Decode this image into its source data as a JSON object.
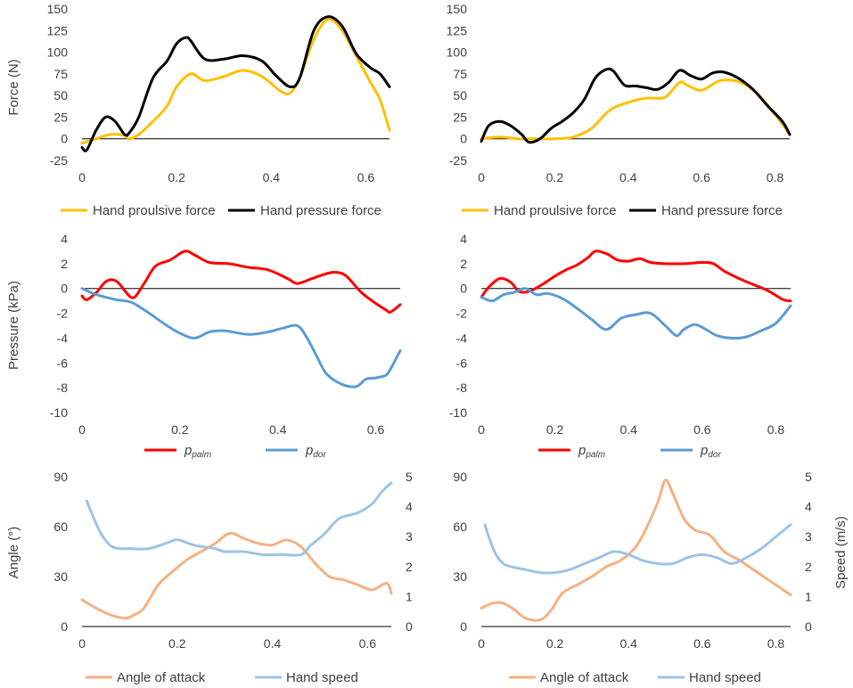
{
  "colors": {
    "propulsive": "#FFC000",
    "pressure_force": "#000000",
    "palm": "#FF0000",
    "dor": "#5B9BD5",
    "angle": "#F4B183",
    "speed": "#9DC3E6",
    "zero_line": "#000000",
    "tick_text": "#404040"
  },
  "chart_data": [
    {
      "id": "force-left",
      "type": "line",
      "ylabel": "Force (N)",
      "xlim": [
        0,
        0.65
      ],
      "ylim": [
        -25,
        150
      ],
      "xticks": [
        "0",
        "0.2",
        "0.4",
        "0.6"
      ],
      "xtick_values": [
        0,
        0.2,
        0.4,
        0.6
      ],
      "yticks": [
        "150",
        "125",
        "100",
        "75",
        "50",
        "25",
        "0",
        "-25"
      ],
      "ytick_values": [
        150,
        125,
        100,
        75,
        50,
        25,
        0,
        -25
      ],
      "legend_position": "bottom",
      "series": [
        {
          "name": "Hand proulsive force",
          "color_key": "propulsive",
          "x": [
            0,
            0.03,
            0.06,
            0.09,
            0.1,
            0.12,
            0.15,
            0.18,
            0.2,
            0.23,
            0.26,
            0.3,
            0.34,
            0.38,
            0.42,
            0.44,
            0.46,
            0.49,
            0.52,
            0.55,
            0.58,
            0.61,
            0.63,
            0.65
          ],
          "values": [
            -5,
            0,
            5,
            4,
            0,
            5,
            20,
            38,
            60,
            75,
            67,
            72,
            79,
            72,
            55,
            53,
            70,
            115,
            138,
            125,
            95,
            65,
            45,
            10
          ]
        },
        {
          "name": "Hand pressure force",
          "color_key": "pressure_force",
          "x": [
            0,
            0.01,
            0.03,
            0.05,
            0.07,
            0.09,
            0.1,
            0.12,
            0.15,
            0.18,
            0.2,
            0.22,
            0.23,
            0.26,
            0.3,
            0.34,
            0.38,
            0.41,
            0.44,
            0.46,
            0.49,
            0.52,
            0.55,
            0.58,
            0.61,
            0.63,
            0.65
          ],
          "values": [
            -10,
            -13,
            10,
            25,
            20,
            5,
            7,
            25,
            70,
            90,
            110,
            117,
            113,
            92,
            92,
            96,
            90,
            73,
            60,
            70,
            125,
            141,
            130,
            98,
            82,
            75,
            60
          ]
        }
      ]
    },
    {
      "id": "force-right",
      "type": "line",
      "ylabel": "",
      "xlim": [
        0,
        0.84
      ],
      "ylim": [
        -25,
        150
      ],
      "xticks": [
        "0",
        "0.2",
        "0.4",
        "0.6",
        "0.8"
      ],
      "xtick_values": [
        0,
        0.2,
        0.4,
        0.6,
        0.8
      ],
      "yticks": [
        "150",
        "125",
        "100",
        "75",
        "50",
        "25",
        "0",
        "-25"
      ],
      "ytick_values": [
        150,
        125,
        100,
        75,
        50,
        25,
        0,
        -25
      ],
      "legend_position": "bottom",
      "series": [
        {
          "name": "Hand proulsive force",
          "color_key": "propulsive",
          "x": [
            0,
            0.05,
            0.1,
            0.15,
            0.2,
            0.25,
            0.3,
            0.35,
            0.4,
            0.45,
            0.5,
            0.54,
            0.56,
            0.6,
            0.65,
            0.7,
            0.75,
            0.8,
            0.84
          ],
          "values": [
            0,
            2,
            0,
            0,
            0,
            2,
            12,
            33,
            42,
            47,
            48,
            65,
            62,
            56,
            67,
            66,
            53,
            28,
            5
          ]
        },
        {
          "name": "Hand pressure force",
          "color_key": "pressure_force",
          "x": [
            0,
            0.02,
            0.05,
            0.08,
            0.11,
            0.13,
            0.16,
            0.19,
            0.22,
            0.25,
            0.28,
            0.31,
            0.34,
            0.36,
            0.39,
            0.42,
            0.45,
            0.48,
            0.51,
            0.54,
            0.57,
            0.6,
            0.63,
            0.66,
            0.7,
            0.74,
            0.78,
            0.82,
            0.84
          ],
          "values": [
            -3,
            15,
            20,
            15,
            5,
            -4,
            0,
            12,
            20,
            30,
            45,
            70,
            80,
            78,
            62,
            61,
            59,
            57,
            65,
            79,
            73,
            69,
            76,
            77,
            70,
            57,
            38,
            20,
            5
          ]
        }
      ]
    },
    {
      "id": "pressure-left",
      "type": "line",
      "ylabel": "Pressure (kPa)",
      "xlim": [
        0,
        0.65
      ],
      "ylim": [
        -10,
        4
      ],
      "xticks": [
        "0",
        "0.2",
        "0.4",
        "0.6"
      ],
      "xtick_values": [
        0,
        0.2,
        0.4,
        0.6
      ],
      "yticks": [
        "4",
        "2",
        "0",
        "-2",
        "-4",
        "-6",
        "-8",
        "-10"
      ],
      "ytick_values": [
        4,
        2,
        0,
        -2,
        -4,
        -6,
        -8,
        -10
      ],
      "legend_position": "bottom",
      "series": [
        {
          "name": "p",
          "sub": "palm",
          "color_key": "palm",
          "x": [
            0,
            0.01,
            0.03,
            0.05,
            0.07,
            0.09,
            0.1,
            0.11,
            0.13,
            0.15,
            0.18,
            0.21,
            0.23,
            0.26,
            0.3,
            0.34,
            0.38,
            0.42,
            0.44,
            0.47,
            0.5,
            0.52,
            0.54,
            0.57,
            0.6,
            0.62,
            0.63,
            0.65
          ],
          "values": [
            -0.6,
            -0.9,
            -0.3,
            0.6,
            0.6,
            -0.3,
            -0.7,
            -0.6,
            0.6,
            1.8,
            2.3,
            3.0,
            2.7,
            2.1,
            2.0,
            1.7,
            1.5,
            0.8,
            0.4,
            0.8,
            1.2,
            1.3,
            1.0,
            -0.3,
            -1.2,
            -1.7,
            -1.9,
            -1.3
          ]
        },
        {
          "name": "p",
          "sub": "dor",
          "color_key": "dor",
          "x": [
            0,
            0.03,
            0.07,
            0.1,
            0.13,
            0.17,
            0.2,
            0.23,
            0.26,
            0.29,
            0.34,
            0.38,
            0.41,
            0.44,
            0.46,
            0.48,
            0.5,
            0.53,
            0.56,
            0.58,
            0.6,
            0.62,
            0.63,
            0.65
          ],
          "values": [
            0,
            -0.5,
            -0.9,
            -1.1,
            -1.8,
            -2.9,
            -3.6,
            -4.0,
            -3.5,
            -3.4,
            -3.7,
            -3.5,
            -3.2,
            -3.0,
            -4.0,
            -5.5,
            -6.9,
            -7.7,
            -7.9,
            -7.3,
            -7.2,
            -7.0,
            -6.5,
            -5.0
          ]
        }
      ]
    },
    {
      "id": "pressure-right",
      "type": "line",
      "ylabel": "",
      "xlim": [
        0,
        0.84
      ],
      "ylim": [
        -10,
        4
      ],
      "xticks": [
        "0",
        "0.2",
        "0.4",
        "0.6",
        "0.8"
      ],
      "xtick_values": [
        0,
        0.2,
        0.4,
        0.6,
        0.8
      ],
      "yticks": [
        "4",
        "2",
        "0",
        "-2",
        "-4",
        "-6",
        "-8",
        "-10"
      ],
      "ytick_values": [
        4,
        2,
        0,
        -2,
        -4,
        -6,
        -8,
        -10
      ],
      "legend_position": "bottom",
      "series": [
        {
          "name": "p",
          "sub": "palm",
          "color_key": "palm",
          "x": [
            0,
            0.02,
            0.05,
            0.08,
            0.1,
            0.12,
            0.14,
            0.17,
            0.2,
            0.23,
            0.26,
            0.29,
            0.31,
            0.34,
            0.37,
            0.4,
            0.43,
            0.46,
            0.5,
            0.55,
            0.6,
            0.63,
            0.66,
            0.7,
            0.74,
            0.78,
            0.82,
            0.84
          ],
          "values": [
            -0.7,
            0.1,
            0.8,
            0.5,
            -0.2,
            -0.3,
            -0.1,
            0.4,
            1.0,
            1.5,
            1.9,
            2.5,
            3.0,
            2.8,
            2.3,
            2.2,
            2.4,
            2.1,
            2.0,
            2.0,
            2.1,
            2.0,
            1.4,
            0.8,
            0.3,
            -0.2,
            -0.9,
            -1.0
          ]
        },
        {
          "name": "p",
          "sub": "dor",
          "color_key": "dor",
          "x": [
            0,
            0.03,
            0.06,
            0.09,
            0.12,
            0.15,
            0.18,
            0.22,
            0.26,
            0.3,
            0.34,
            0.38,
            0.42,
            0.46,
            0.5,
            0.53,
            0.55,
            0.58,
            0.61,
            0.64,
            0.68,
            0.72,
            0.76,
            0.8,
            0.84
          ],
          "values": [
            -0.7,
            -1.0,
            -0.5,
            -0.3,
            0.0,
            -0.5,
            -0.4,
            -0.8,
            -1.6,
            -2.5,
            -3.3,
            -2.4,
            -2.1,
            -2.0,
            -3.0,
            -3.8,
            -3.3,
            -2.9,
            -3.3,
            -3.8,
            -4.0,
            -3.9,
            -3.4,
            -2.8,
            -1.4
          ]
        }
      ]
    },
    {
      "id": "angle-left",
      "type": "line",
      "ylabel": "Angle (°)",
      "y2label": "",
      "xlim": [
        0,
        0.65
      ],
      "ylim": [
        0,
        90
      ],
      "y2lim": [
        0,
        5
      ],
      "xticks": [
        "0",
        "0.2",
        "0.4",
        "0.6"
      ],
      "xtick_values": [
        0,
        0.2,
        0.4,
        0.6
      ],
      "yticks": [
        "90",
        "60",
        "30",
        "0"
      ],
      "ytick_values": [
        90,
        60,
        30,
        0
      ],
      "y2ticks": [
        "5",
        "4",
        "3",
        "2",
        "1",
        "0"
      ],
      "y2tick_values": [
        5,
        4,
        3,
        2,
        1,
        0
      ],
      "legend_position": "bottom",
      "series": [
        {
          "name": "Angle of attack",
          "color_key": "angle",
          "axis": "left",
          "x": [
            0,
            0.03,
            0.06,
            0.09,
            0.11,
            0.13,
            0.16,
            0.19,
            0.22,
            0.25,
            0.28,
            0.31,
            0.34,
            0.37,
            0.4,
            0.43,
            0.46,
            0.49,
            0.52,
            0.55,
            0.58,
            0.61,
            0.64,
            0.65
          ],
          "values": [
            16,
            11,
            7,
            5,
            7,
            11,
            25,
            33,
            40,
            45,
            50,
            56,
            53,
            50,
            49,
            52,
            48,
            38,
            30,
            28,
            25,
            22,
            26,
            20
          ]
        },
        {
          "name": "Hand speed",
          "color_key": "speed",
          "axis": "right",
          "x": [
            0.01,
            0.02,
            0.04,
            0.06,
            0.08,
            0.1,
            0.14,
            0.18,
            0.2,
            0.22,
            0.24,
            0.28,
            0.3,
            0.34,
            0.38,
            0.42,
            0.46,
            0.48,
            0.51,
            0.54,
            0.58,
            0.61,
            0.63,
            0.65
          ],
          "values": [
            4.2,
            3.8,
            3.1,
            2.7,
            2.6,
            2.6,
            2.6,
            2.8,
            2.9,
            2.8,
            2.7,
            2.6,
            2.5,
            2.5,
            2.4,
            2.4,
            2.4,
            2.7,
            3.1,
            3.6,
            3.8,
            4.1,
            4.5,
            4.8
          ]
        }
      ]
    },
    {
      "id": "angle-right",
      "type": "line",
      "ylabel": "",
      "y2label": "Speed (m/s)",
      "xlim": [
        0,
        0.84
      ],
      "ylim": [
        0,
        90
      ],
      "y2lim": [
        0,
        5
      ],
      "xticks": [
        "0",
        "0.2",
        "0.4",
        "0.6",
        "0.8"
      ],
      "xtick_values": [
        0,
        0.2,
        0.4,
        0.6,
        0.8
      ],
      "yticks": [
        "90",
        "60",
        "30",
        "0"
      ],
      "ytick_values": [
        90,
        60,
        30,
        0
      ],
      "y2ticks": [
        "5",
        "4",
        "3",
        "2",
        "1",
        "0"
      ],
      "y2tick_values": [
        5,
        4,
        3,
        2,
        1,
        0
      ],
      "legend_position": "bottom",
      "series": [
        {
          "name": "Angle of attack",
          "color_key": "angle",
          "axis": "left",
          "x": [
            0,
            0.03,
            0.06,
            0.09,
            0.12,
            0.16,
            0.19,
            0.22,
            0.26,
            0.3,
            0.34,
            0.38,
            0.42,
            0.45,
            0.48,
            0.5,
            0.52,
            0.55,
            0.58,
            0.62,
            0.66,
            0.7,
            0.74,
            0.78,
            0.82,
            0.84
          ],
          "values": [
            11,
            14,
            14,
            10,
            5,
            4,
            10,
            20,
            25,
            30,
            36,
            40,
            48,
            60,
            75,
            88,
            80,
            65,
            58,
            55,
            45,
            40,
            34,
            28,
            22,
            19
          ]
        },
        {
          "name": "Hand speed",
          "color_key": "speed",
          "axis": "right",
          "x": [
            0.01,
            0.02,
            0.04,
            0.06,
            0.08,
            0.12,
            0.16,
            0.2,
            0.24,
            0.28,
            0.32,
            0.36,
            0.4,
            0.44,
            0.48,
            0.52,
            0.56,
            0.6,
            0.64,
            0.68,
            0.72,
            0.76,
            0.8,
            0.84
          ],
          "values": [
            3.4,
            3.0,
            2.4,
            2.1,
            2.0,
            1.9,
            1.8,
            1.8,
            1.9,
            2.1,
            2.3,
            2.5,
            2.4,
            2.2,
            2.1,
            2.1,
            2.3,
            2.4,
            2.3,
            2.1,
            2.3,
            2.6,
            3.0,
            3.4
          ]
        }
      ]
    }
  ],
  "legends": {
    "force_left": [
      "Hand proulsive force",
      "Hand pressure force"
    ],
    "force_right": [
      "Hand proulsive force",
      "Hand pressure force"
    ],
    "pressure_left": [
      {
        "p": "p",
        "sub": "palm"
      },
      {
        "p": "p",
        "sub": "dor"
      }
    ],
    "pressure_right": [
      {
        "p": "p",
        "sub": "palm"
      },
      {
        "p": "p",
        "sub": "dor"
      }
    ],
    "angle_left": [
      "Angle of attack",
      "Hand speed"
    ],
    "angle_right": [
      "Angle of attack",
      "Hand speed"
    ]
  },
  "axis_titles": {
    "force": "Force (N)",
    "pressure": "Pressure (kPa)",
    "angle": "Angle (°)",
    "speed": "Speed (m/s)"
  }
}
